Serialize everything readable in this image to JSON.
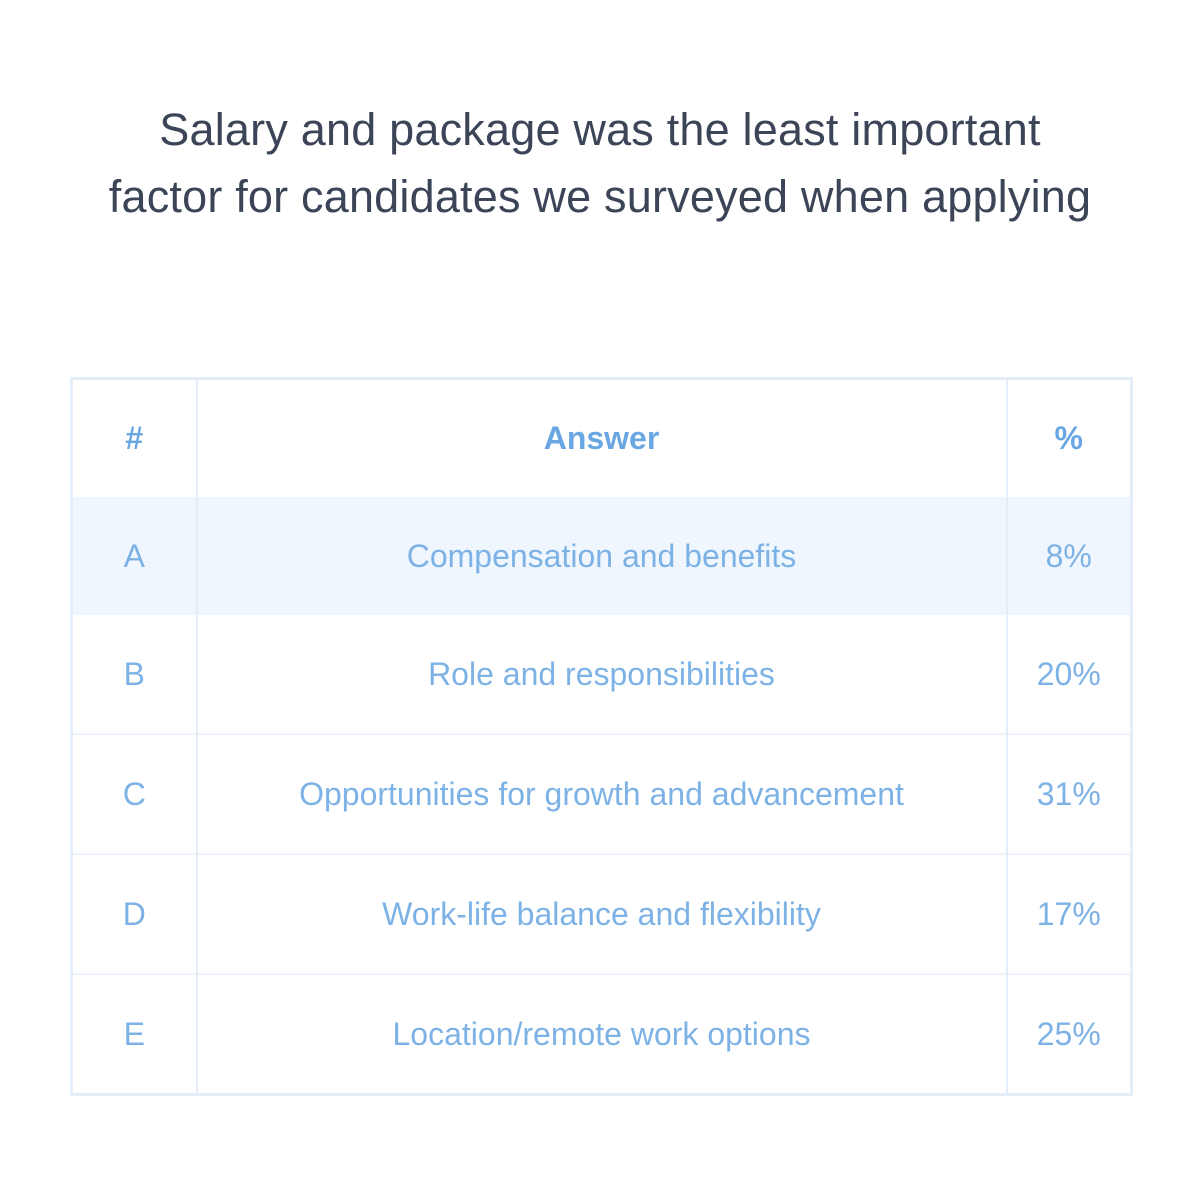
{
  "title": "Salary and package was the least important factor for candidates we surveyed when applying",
  "table": {
    "headers": {
      "num": "#",
      "answer": "Answer",
      "percent": "%"
    },
    "rows": [
      {
        "id": "A",
        "answer": "Compensation and benefits",
        "percent": "8%",
        "highlighted": true
      },
      {
        "id": "B",
        "answer": "Role and responsibilities",
        "percent": "20%"
      },
      {
        "id": "C",
        "answer": "Opportunities for growth and advancement",
        "percent": "31%"
      },
      {
        "id": "D",
        "answer": "Work-life balance and flexibility",
        "percent": "17%"
      },
      {
        "id": "E",
        "answer": "Location/remote work options",
        "percent": "25%"
      }
    ]
  },
  "colors": {
    "title_text": "#3c4558",
    "table_text": "#7db2e6",
    "header_text": "#6aa7e2",
    "highlight_row": "#f0f6fd",
    "border": "#e4eef9"
  }
}
